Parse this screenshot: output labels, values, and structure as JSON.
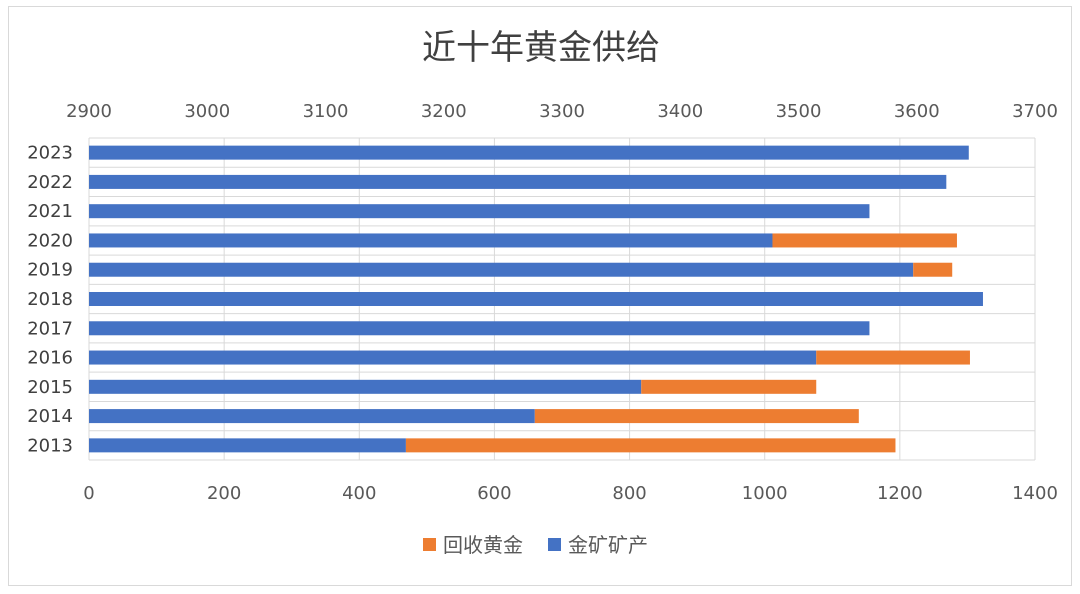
{
  "chart_data": {
    "type": "bar",
    "orientation": "horizontal",
    "stacked": true,
    "title": "近十年黄金供给",
    "categories": [
      "2023",
      "2022",
      "2021",
      "2020",
      "2019",
      "2018",
      "2017",
      "2016",
      "2015",
      "2014",
      "2013"
    ],
    "series": [
      {
        "name": "金矿矿产",
        "color": "#4472C4",
        "values": [
          3644,
          3625,
          3560,
          3478,
          3597,
          3656,
          3560,
          3515,
          3367,
          3277,
          3168
        ]
      },
      {
        "name": "回收黄金",
        "color": "#ED7D31",
        "values": [
          0,
          0,
          0,
          156,
          33,
          0,
          0,
          130,
          148,
          274,
          414
        ]
      }
    ],
    "primary_axis": {
      "ticks": [
        "0",
        "200",
        "400",
        "600",
        "800",
        "1000",
        "1200",
        "1400"
      ],
      "range": [
        0,
        1400
      ]
    },
    "secondary_axis": {
      "ticks": [
        "2900",
        "3000",
        "3100",
        "3200",
        "3300",
        "3400",
        "3500",
        "3600",
        "3700"
      ],
      "range": [
        2900,
        3700
      ]
    },
    "legend": {
      "position": "bottom",
      "entries": [
        "回收黄金",
        "金矿矿产"
      ]
    },
    "grid": true
  }
}
